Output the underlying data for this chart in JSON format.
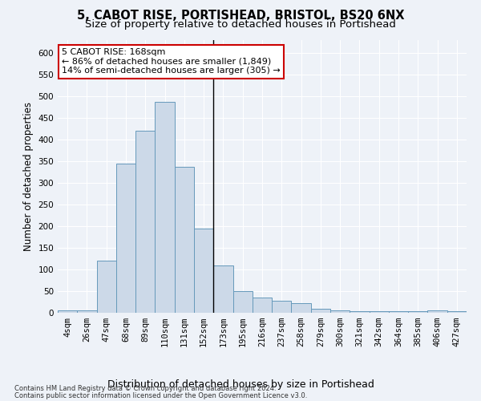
{
  "title": "5, CABOT RISE, PORTISHEAD, BRISTOL, BS20 6NX",
  "subtitle": "Size of property relative to detached houses in Portishead",
  "xlabel": "Distribution of detached houses by size in Portishead",
  "ylabel": "Number of detached properties",
  "bar_labels": [
    "4sqm",
    "26sqm",
    "47sqm",
    "68sqm",
    "89sqm",
    "110sqm",
    "131sqm",
    "152sqm",
    "173sqm",
    "195sqm",
    "216sqm",
    "237sqm",
    "258sqm",
    "279sqm",
    "300sqm",
    "321sqm",
    "342sqm",
    "364sqm",
    "385sqm",
    "406sqm",
    "427sqm"
  ],
  "bar_values": [
    5,
    5,
    120,
    345,
    420,
    487,
    338,
    195,
    110,
    50,
    35,
    27,
    22,
    10,
    5,
    4,
    4,
    4,
    3,
    5,
    3
  ],
  "bar_color": "#ccd9e8",
  "bar_edge_color": "#6699bb",
  "vline_x": 7.5,
  "annotation_text": "5 CABOT RISE: 168sqm\n← 86% of detached houses are smaller (1,849)\n14% of semi-detached houses are larger (305) →",
  "annotation_box_color": "#ffffff",
  "annotation_box_edge": "#cc0000",
  "ylim": [
    0,
    630
  ],
  "yticks": [
    0,
    50,
    100,
    150,
    200,
    250,
    300,
    350,
    400,
    450,
    500,
    550,
    600
  ],
  "footer1": "Contains HM Land Registry data © Crown copyright and database right 2024.",
  "footer2": "Contains public sector information licensed under the Open Government Licence v3.0.",
  "background_color": "#eef2f8",
  "grid_color": "#ffffff",
  "title_fontsize": 10.5,
  "subtitle_fontsize": 9.5,
  "ylabel_fontsize": 8.5,
  "xlabel_fontsize": 9,
  "tick_fontsize": 7.5,
  "annotation_fontsize": 8,
  "footer_fontsize": 6
}
